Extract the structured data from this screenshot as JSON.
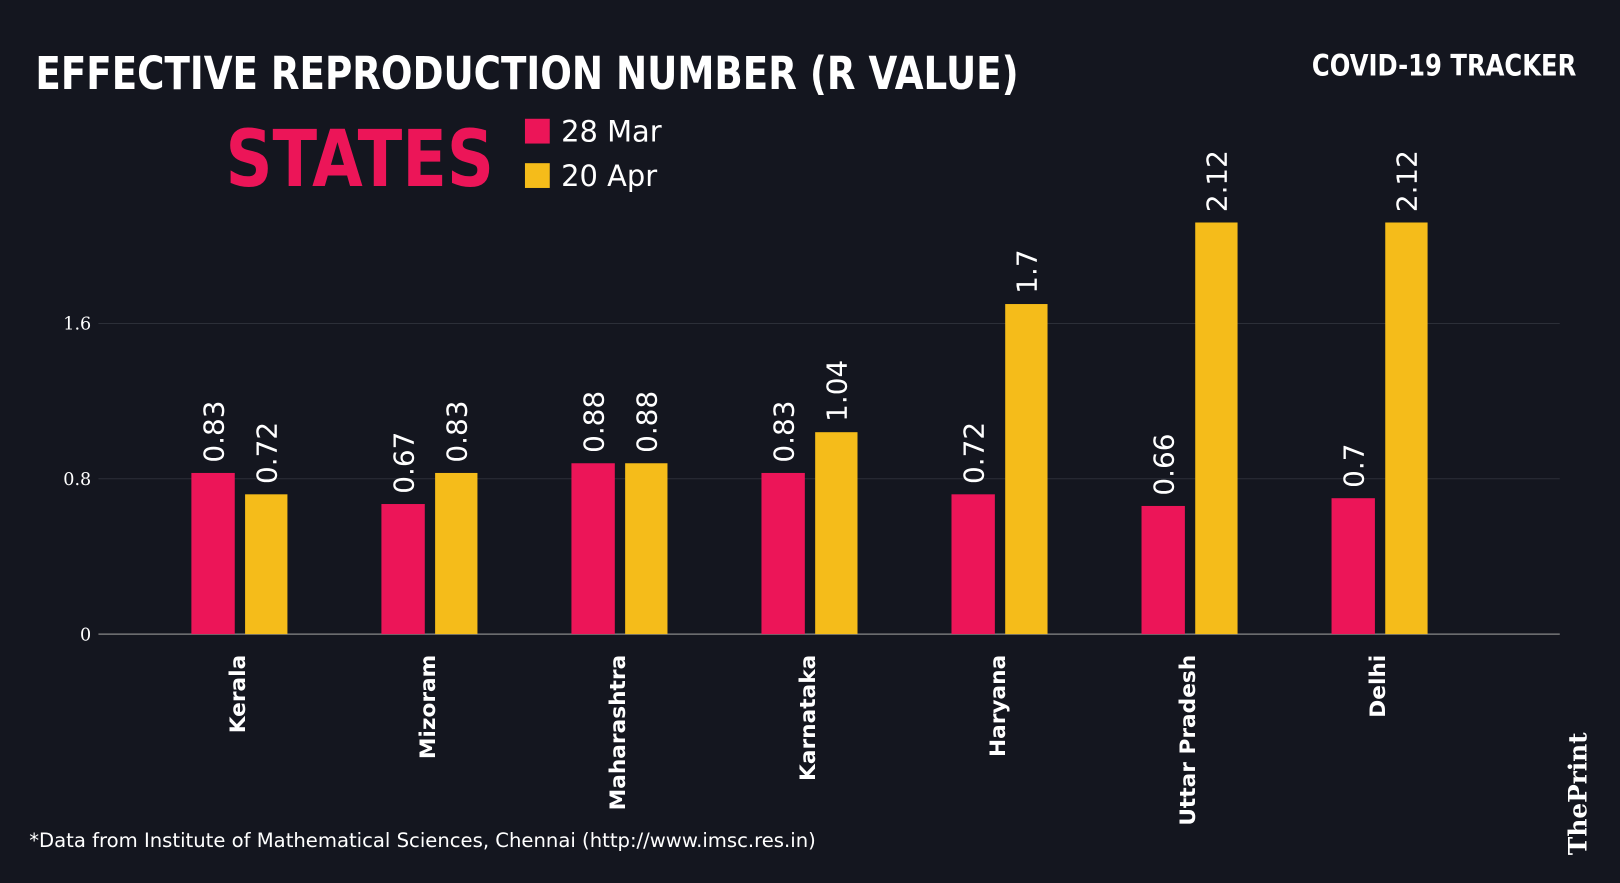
{
  "header": {
    "title": "EFFECTIVE REPRODUCTION NUMBER (R VALUE)",
    "tracker": "COVID-19 TRACKER",
    "subtitle": "STATES"
  },
  "footer": {
    "source": "*Data from Institute of Mathematical Sciences, Chennai (http://www.imsc.res.in)",
    "logo": "ThePrint"
  },
  "colors": {
    "background": "#14161f",
    "series1": "#ec1558",
    "series2": "#f5bc1a",
    "grid": "#2c2f38"
  },
  "chart_data": {
    "type": "bar",
    "title": "EFFECTIVE REPRODUCTION NUMBER (R VALUE)",
    "categories": [
      "Kerala",
      "Mizoram",
      "Maharashtra",
      "Karnataka",
      "Haryana",
      "Uttar Pradesh",
      "Delhi"
    ],
    "series": [
      {
        "name": "28 Mar",
        "values": [
          0.83,
          0.67,
          0.88,
          0.83,
          0.72,
          0.66,
          0.7
        ]
      },
      {
        "name": "20 Apr",
        "values": [
          0.72,
          0.83,
          0.88,
          1.04,
          1.7,
          2.12,
          2.12
        ]
      }
    ],
    "yticks": [
      "0",
      "0.8",
      "1.6"
    ],
    "ylim": [
      0,
      2.2
    ],
    "grid": true,
    "legend": "top-left",
    "data_labels": true
  }
}
